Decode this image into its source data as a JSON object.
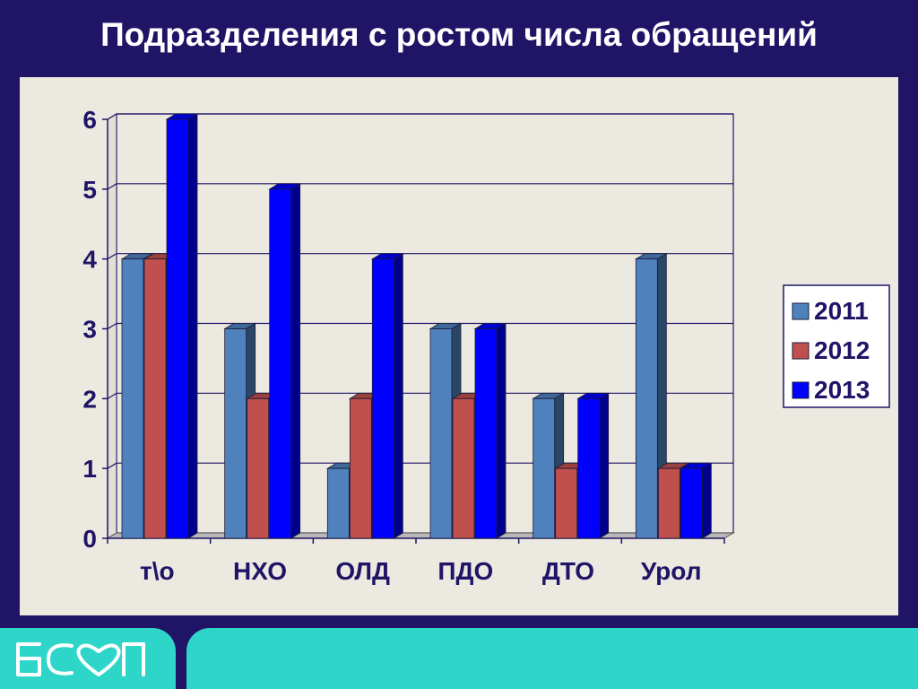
{
  "slide": {
    "title": "Подразделения с ростом числа обращений",
    "logo_text": "БСМП"
  },
  "colors": {
    "background": "#1f1466",
    "panel": "#ece9e0",
    "footer": "#2ed6c9"
  },
  "chart_data": {
    "type": "bar",
    "title": "",
    "xlabel": "",
    "ylabel": "",
    "categories": [
      "т\\о",
      "НХО",
      "ОЛД",
      "ПДО",
      "ДТО",
      "Урол"
    ],
    "series": [
      {
        "name": "2011",
        "color": "#4f81bd",
        "values": [
          4,
          3,
          1,
          3,
          2,
          4
        ]
      },
      {
        "name": "2012",
        "color": "#c0504d",
        "values": [
          4,
          2,
          2,
          2,
          1,
          1
        ]
      },
      {
        "name": "2013",
        "color": "#0000ff",
        "values": [
          6,
          5,
          4,
          3,
          2,
          1
        ]
      }
    ],
    "ylim": [
      0,
      6
    ],
    "yticks": [
      "0",
      "1",
      "2",
      "3",
      "4",
      "5",
      "6"
    ],
    "grid": true,
    "legend": "right",
    "style": "3d-clustered-columns"
  }
}
